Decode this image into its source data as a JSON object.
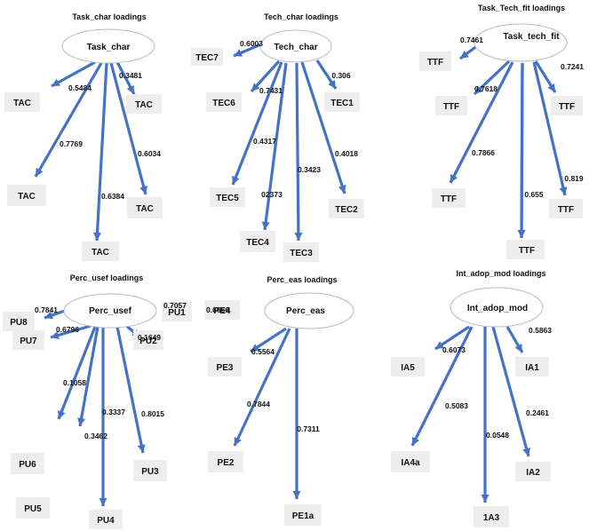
{
  "diagrams": [
    {
      "title": "Task_char loadings",
      "latent": "Task_char",
      "indicators": [
        {
          "label": "TAC",
          "loading": "0.3481"
        },
        {
          "label": "TAC",
          "loading": "0.5484"
        },
        {
          "label": "TAC",
          "loading": "0.7769"
        },
        {
          "label": "TAC",
          "loading": "0.6384"
        },
        {
          "label": "TAC",
          "loading": "0.6034"
        }
      ]
    },
    {
      "title": "Tech_char loadings",
      "latent": "Tech_char",
      "indicators": [
        {
          "label": "TEC7",
          "loading": "0.6003"
        },
        {
          "label": "TEC6",
          "loading": "0.7431"
        },
        {
          "label": "TEC1",
          "loading": "0.306"
        },
        {
          "label": "TEC5",
          "loading": "0.4317"
        },
        {
          "label": "TEC4",
          "loading": "02373"
        },
        {
          "label": "TEC3",
          "loading": "0.3423"
        },
        {
          "label": "TEC2",
          "loading": "0.4018"
        }
      ]
    },
    {
      "title": "Task_Tech_fit loadings",
      "latent": "Task_tech_fit",
      "indicators": [
        {
          "label": "TTF",
          "loading": "0.7461"
        },
        {
          "label": "TTF",
          "loading": "0.7618"
        },
        {
          "label": "TTF",
          "loading": "0.7241"
        },
        {
          "label": "TTF",
          "loading": "0.7866"
        },
        {
          "label": "TTF",
          "loading": "0.655"
        },
        {
          "label": "TTF",
          "loading": "0.819"
        },
        {
          "label": "TTF",
          "loading": ""
        }
      ]
    },
    {
      "title": "Perc_usef loadings",
      "latent": "Perc_usef",
      "indicators": [
        {
          "label": "PU8",
          "loading": "0.7841"
        },
        {
          "label": "PU1",
          "loading": "0.7057"
        },
        {
          "label": "PU7",
          "loading": "0.6796"
        },
        {
          "label": "PU2",
          "loading": "0.1649"
        },
        {
          "label": "PU6",
          "loading": "0.1058"
        },
        {
          "label": "PU5",
          "loading": "0.3462"
        },
        {
          "label": "PU4",
          "loading": "0.3337"
        },
        {
          "label": "PU3",
          "loading": "0.8015"
        }
      ]
    },
    {
      "title": "Perc_eas loadings",
      "latent": "Perc_eas",
      "indicators": [
        {
          "label": "PE4",
          "loading": "0.6666"
        },
        {
          "label": "PE3",
          "loading": "0.5564"
        },
        {
          "label": "PE2",
          "loading": "0.7844"
        },
        {
          "label": "PE1a",
          "loading": "0.7311"
        }
      ]
    },
    {
      "title": "Int_adop_mod loadings",
      "latent": "Int_adop_mod",
      "indicators": [
        {
          "label": "IA5",
          "loading": "0.6073"
        },
        {
          "label": "IA1",
          "loading": "0.5863"
        },
        {
          "label": "IA4a",
          "loading": "0.5083"
        },
        {
          "label": "1A3",
          "loading": "0.0548"
        },
        {
          "label": "IA2",
          "loading": "0.2461"
        }
      ]
    }
  ]
}
